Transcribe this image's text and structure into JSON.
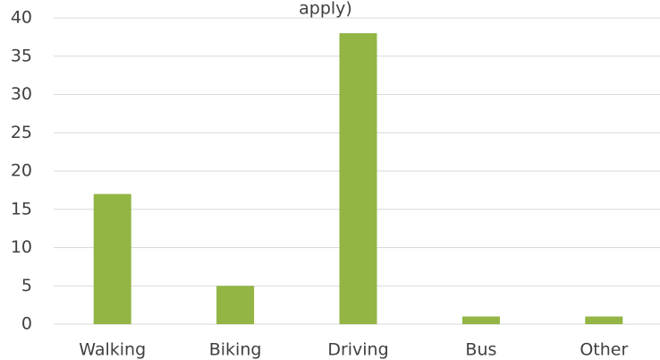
{
  "chart_data": {
    "type": "bar",
    "title": "apply)",
    "categories": [
      "Walking",
      "Biking",
      "Driving",
      "Bus",
      "Other"
    ],
    "values": [
      17,
      5,
      38,
      1,
      1
    ],
    "color": "#92b544",
    "ylim": [
      0,
      40
    ],
    "yticks": [
      0,
      5,
      10,
      15,
      20,
      25,
      30,
      35,
      40
    ],
    "grid": true
  }
}
